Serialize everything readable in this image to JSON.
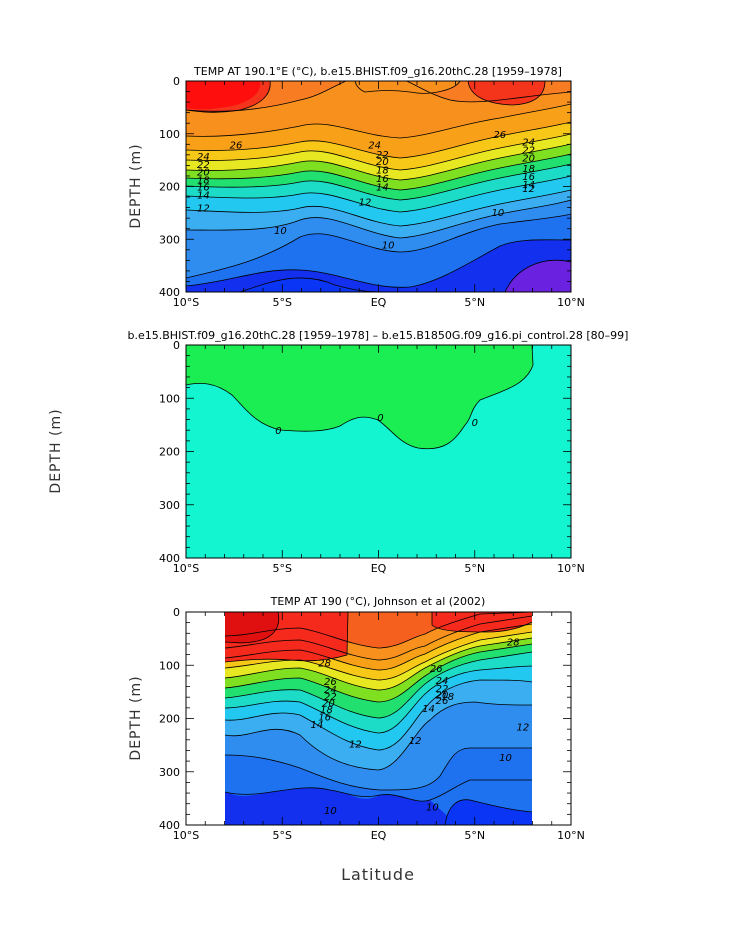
{
  "chart_data": [
    {
      "type": "contour",
      "title": "TEMP AT 190.1°E (°C), b.e15.BHIST.f09_g16.20thC.28 ‍[1959–1978]",
      "xlabel": "",
      "ylabel": "DEPTH (m)",
      "x_ticks": [
        "10°S",
        "5°S",
        "EQ",
        "5°N",
        "10°N"
      ],
      "y_ticks": [
        "0",
        "100",
        "200",
        "300",
        "400"
      ],
      "xlim": [
        -10,
        10
      ],
      "ylim": [
        400,
        0
      ],
      "contour_labels": [
        {
          "text": "26",
          "lat": -7.4,
          "depth": 120
        },
        {
          "text": "26",
          "lat": 6.3,
          "depth": 100
        },
        {
          "text": "24",
          "lat": -0.2,
          "depth": 120
        },
        {
          "text": "24",
          "lat": 7.8,
          "depth": 115
        },
        {
          "text": "22",
          "lat": 7.8,
          "depth": 130
        },
        {
          "text": "20",
          "lat": 7.8,
          "depth": 145
        },
        {
          "text": "18",
          "lat": 7.8,
          "depth": 165
        },
        {
          "text": "16",
          "lat": 7.8,
          "depth": 180
        },
        {
          "text": "14",
          "lat": 7.8,
          "depth": 195
        },
        {
          "text": "24",
          "lat": -9.1,
          "depth": 142
        },
        {
          "text": "22",
          "lat": -9.1,
          "depth": 157
        },
        {
          "text": "20",
          "lat": -9.1,
          "depth": 172
        },
        {
          "text": "18",
          "lat": -9.1,
          "depth": 187
        },
        {
          "text": "16",
          "lat": -9.1,
          "depth": 200
        },
        {
          "text": "14",
          "lat": -9.1,
          "depth": 215
        },
        {
          "text": "12",
          "lat": -9.1,
          "depth": 240
        },
        {
          "text": "22",
          "lat": 0.2,
          "depth": 138
        },
        {
          "text": "20",
          "lat": 0.2,
          "depth": 152
        },
        {
          "text": "18",
          "lat": 0.2,
          "depth": 168
        },
        {
          "text": "16",
          "lat": 0.2,
          "depth": 184
        },
        {
          "text": "14",
          "lat": 0.2,
          "depth": 200
        },
        {
          "text": "12",
          "lat": -0.7,
          "depth": 228
        },
        {
          "text": "12",
          "lat": 7.8,
          "depth": 203
        },
        {
          "text": "10",
          "lat": -5.1,
          "depth": 282
        },
        {
          "text": "10",
          "lat": 0.5,
          "depth": 310
        },
        {
          "text": "10",
          "lat": 6.2,
          "depth": 248
        }
      ]
    },
    {
      "type": "contour",
      "title": "b.e15.BHIST.f09_g16.20thC.28 ‍[1959–1978] – b.e15.B1850G.f09_g16.pi_control.28 ‍[80–99]",
      "xlabel": "",
      "ylabel": "DEPTH (m)",
      "x_ticks": [
        "10°S",
        "5°S",
        "EQ",
        "5°N",
        "10°N"
      ],
      "y_ticks": [
        "0",
        "100",
        "200",
        "300",
        "400"
      ],
      "xlim": [
        -10,
        10
      ],
      "ylim": [
        400,
        0
      ],
      "contour_labels": [
        {
          "text": "0",
          "lat": -5.2,
          "depth": 160
        },
        {
          "text": "0",
          "lat": 0.1,
          "depth": 135
        },
        {
          "text": "0",
          "lat": 5.0,
          "depth": 145
        }
      ]
    },
    {
      "type": "contour",
      "title": "TEMP AT 190 (°C), Johnson et al (2002)",
      "xlabel": "Latitude",
      "ylabel": "DEPTH (m)",
      "x_ticks": [
        "10°S",
        "5°S",
        "EQ",
        "5°N",
        "10°N"
      ],
      "y_ticks": [
        "0",
        "100",
        "200",
        "300",
        "400"
      ],
      "xlim": [
        -10,
        10
      ],
      "ylim": [
        400,
        0
      ],
      "data_lat_range": [
        -8,
        8
      ],
      "contour_labels": [
        {
          "text": "28",
          "lat": -2.8,
          "depth": 95
        },
        {
          "text": "28",
          "lat": 7.0,
          "depth": 55
        },
        {
          "text": "26",
          "lat": -2.5,
          "depth": 130
        },
        {
          "text": "26",
          "lat": 3.0,
          "depth": 105
        },
        {
          "text": "24",
          "lat": 3.3,
          "depth": 128
        },
        {
          "text": "22",
          "lat": 3.3,
          "depth": 143
        },
        {
          "text": "20",
          "lat": 3.3,
          "depth": 155
        },
        {
          "text": "26",
          "lat": 3.3,
          "depth": 165
        },
        {
          "text": "18",
          "lat": 3.6,
          "depth": 158
        },
        {
          "text": "14",
          "lat": 2.6,
          "depth": 180
        },
        {
          "text": "24",
          "lat": -2.5,
          "depth": 145
        },
        {
          "text": "22",
          "lat": -2.5,
          "depth": 158
        },
        {
          "text": "20",
          "lat": -2.6,
          "depth": 170
        },
        {
          "text": "18",
          "lat": -2.7,
          "depth": 182
        },
        {
          "text": "16",
          "lat": -2.8,
          "depth": 196
        },
        {
          "text": "14",
          "lat": -3.2,
          "depth": 210
        },
        {
          "text": "12",
          "lat": -1.2,
          "depth": 247
        },
        {
          "text": "12",
          "lat": 1.9,
          "depth": 240
        },
        {
          "text": "12",
          "lat": 7.5,
          "depth": 215
        },
        {
          "text": "10",
          "lat": -2.5,
          "depth": 372
        },
        {
          "text": "10",
          "lat": 2.8,
          "depth": 365
        },
        {
          "text": "10",
          "lat": 6.6,
          "depth": 272
        }
      ]
    }
  ]
}
